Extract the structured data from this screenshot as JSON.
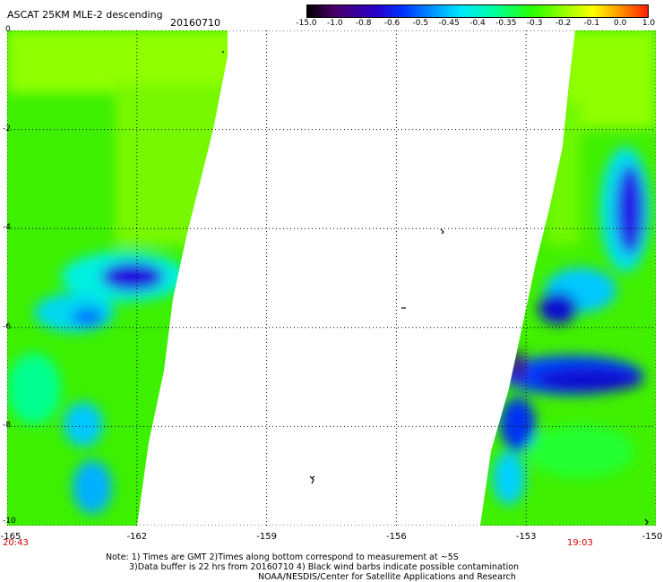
{
  "header": {
    "title": "ASCAT 25KM MLE-2 descending",
    "date": "20160710"
  },
  "colorbar": {
    "labels": [
      "-15.0",
      "-1.0",
      "-0.8",
      "-0.6",
      "-0.5",
      "-0.45",
      "-0.4",
      "-0.35",
      "-0.3",
      "-0.2",
      "-0.1",
      "0.0",
      "1.0"
    ]
  },
  "axes": {
    "y_labels": [
      "0",
      "-2",
      "-4",
      "-6",
      "-8",
      "-10"
    ],
    "x_labels": [
      "-165",
      "-162",
      "-159",
      "-156",
      "-153",
      "-150"
    ]
  },
  "times": {
    "left": "20:43",
    "right": "19:03"
  },
  "footer": {
    "line1": "Note: 1) Times are GMT 2)Times along bottom correspond to measurement at ~5S",
    "line2": "3)Data buffer is 22 hrs from 20160710 4) Black wind barbs indicate possible contamination",
    "line3": "NOAA/NESDIS/Center for Satellite Applications and Research"
  },
  "colors": {
    "grid": "#000000",
    "time_label": "#d00000"
  }
}
